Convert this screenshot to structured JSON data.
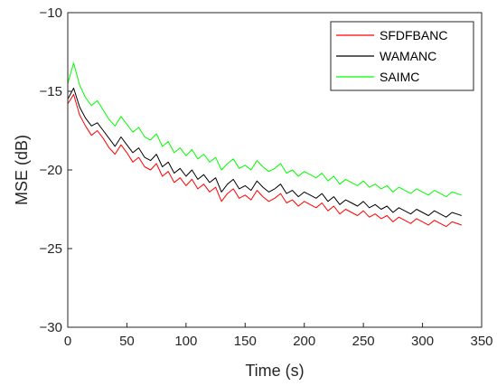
{
  "chart_data": {
    "type": "line",
    "title": "",
    "xlabel": "Time (s)",
    "ylabel": "MSE (dB)",
    "xlim": [
      0,
      350
    ],
    "ylim": [
      -30,
      -10
    ],
    "xticks": [
      0,
      50,
      100,
      150,
      200,
      250,
      300,
      350
    ],
    "yticks": [
      -10,
      -15,
      -20,
      -25,
      -30
    ],
    "xtick_labels": [
      "0",
      "50",
      "100",
      "150",
      "200",
      "250",
      "300",
      "350"
    ],
    "ytick_labels": [
      "−10",
      "−15",
      "−20",
      "−25",
      "−30"
    ],
    "grid": false,
    "legend_position": "top-right",
    "x": [
      0,
      5,
      10,
      15,
      20,
      25,
      30,
      35,
      40,
      45,
      50,
      55,
      60,
      65,
      70,
      75,
      80,
      85,
      90,
      95,
      100,
      105,
      110,
      115,
      120,
      125,
      130,
      135,
      140,
      145,
      150,
      155,
      160,
      165,
      170,
      175,
      180,
      185,
      190,
      195,
      200,
      205,
      210,
      215,
      220,
      225,
      230,
      235,
      240,
      245,
      250,
      255,
      260,
      265,
      270,
      275,
      280,
      285,
      290,
      295,
      300,
      305,
      310,
      315,
      320,
      325,
      333
    ],
    "series": [
      {
        "name": "SFDFBANC",
        "color": "#ff0000",
        "values": [
          -15.8,
          -15.2,
          -16.5,
          -17.2,
          -17.8,
          -17.5,
          -18.0,
          -18.6,
          -19.0,
          -18.4,
          -18.9,
          -19.5,
          -19.2,
          -19.8,
          -20.0,
          -19.6,
          -20.4,
          -20.1,
          -20.8,
          -20.5,
          -21.0,
          -20.6,
          -21.2,
          -20.9,
          -21.4,
          -21.1,
          -22.0,
          -21.5,
          -21.2,
          -21.8,
          -21.6,
          -21.9,
          -21.3,
          -21.7,
          -22.0,
          -21.8,
          -21.5,
          -22.1,
          -21.9,
          -22.3,
          -22.0,
          -22.2,
          -22.4,
          -22.1,
          -22.6,
          -22.3,
          -22.8,
          -22.5,
          -22.7,
          -22.9,
          -22.6,
          -23.0,
          -22.8,
          -23.1,
          -22.9,
          -23.3,
          -23.0,
          -23.2,
          -23.4,
          -23.1,
          -23.3,
          -23.5,
          -23.2,
          -23.4,
          -23.6,
          -23.3,
          -23.5
        ]
      },
      {
        "name": "WAMANC",
        "color": "#000000",
        "values": [
          -15.5,
          -14.8,
          -16.0,
          -16.7,
          -17.2,
          -17.0,
          -17.5,
          -18.0,
          -18.5,
          -17.9,
          -18.4,
          -18.9,
          -18.6,
          -19.2,
          -19.4,
          -19.0,
          -19.8,
          -19.5,
          -20.2,
          -19.9,
          -20.4,
          -20.0,
          -20.6,
          -20.3,
          -20.8,
          -20.5,
          -21.4,
          -20.9,
          -20.6,
          -21.2,
          -21.0,
          -21.3,
          -20.7,
          -21.1,
          -21.4,
          -21.2,
          -20.9,
          -21.5,
          -21.3,
          -21.7,
          -21.4,
          -21.6,
          -21.8,
          -21.5,
          -22.0,
          -21.7,
          -22.2,
          -21.9,
          -22.1,
          -22.3,
          -22.0,
          -22.4,
          -22.2,
          -22.5,
          -22.3,
          -22.7,
          -22.4,
          -22.6,
          -22.8,
          -22.5,
          -22.7,
          -22.9,
          -22.6,
          -22.8,
          -23.0,
          -22.7,
          -22.9
        ]
      },
      {
        "name": "SAIMC",
        "color": "#00ff00",
        "values": [
          -14.5,
          -13.2,
          -14.6,
          -15.4,
          -15.9,
          -15.6,
          -16.2,
          -16.8,
          -17.2,
          -16.6,
          -17.1,
          -17.6,
          -17.3,
          -17.9,
          -18.1,
          -17.7,
          -18.5,
          -18.2,
          -18.9,
          -18.6,
          -19.1,
          -18.7,
          -19.3,
          -19.0,
          -19.5,
          -19.2,
          -20.0,
          -19.6,
          -19.3,
          -19.9,
          -19.7,
          -20.0,
          -19.4,
          -19.8,
          -20.1,
          -19.9,
          -19.6,
          -20.2,
          -20.0,
          -20.4,
          -20.1,
          -20.3,
          -20.5,
          -20.2,
          -20.7,
          -20.4,
          -20.9,
          -20.6,
          -20.8,
          -21.0,
          -20.7,
          -21.1,
          -20.9,
          -21.2,
          -21.0,
          -21.4,
          -21.1,
          -21.3,
          -21.5,
          -21.2,
          -21.4,
          -21.6,
          -21.3,
          -21.5,
          -21.7,
          -21.4,
          -21.6
        ]
      }
    ]
  }
}
